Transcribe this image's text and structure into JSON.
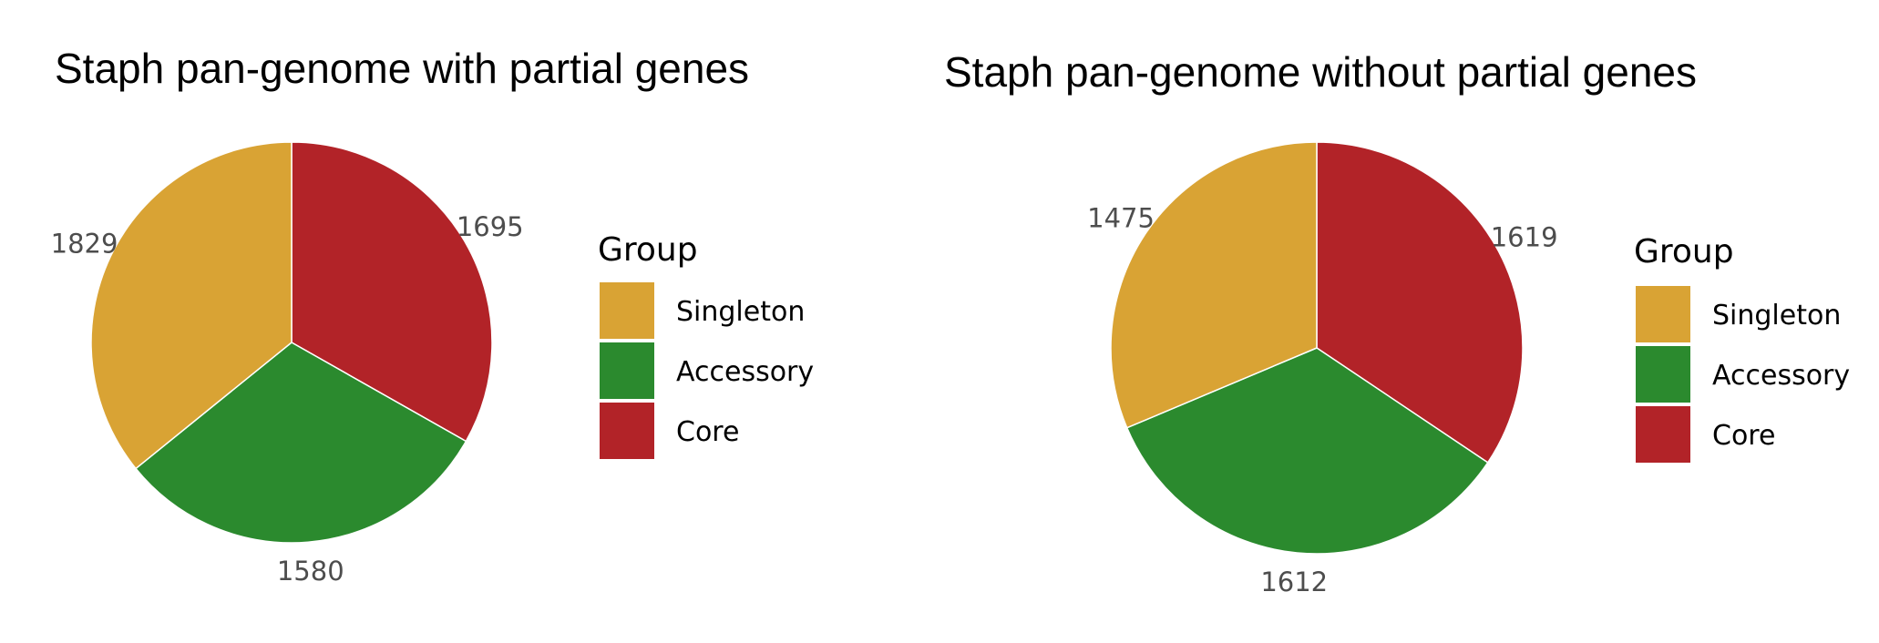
{
  "chart_data": [
    {
      "type": "pie",
      "title": "Staph pan-genome with partial genes",
      "categories": [
        "Singleton",
        "Accessory",
        "Core"
      ],
      "values": [
        1829,
        1580,
        1695
      ],
      "colors": [
        "#D9A334",
        "#2B8A2E",
        "#B22328"
      ],
      "legend_title": "Group",
      "legend_position": "right"
    },
    {
      "type": "pie",
      "title": "Staph pan-genome without partial genes",
      "categories": [
        "Singleton",
        "Accessory",
        "Core"
      ],
      "values": [
        1475,
        1612,
        1619
      ],
      "colors": [
        "#D9A334",
        "#2B8A2E",
        "#B22328"
      ],
      "legend_title": "Group",
      "legend_position": "right"
    }
  ]
}
